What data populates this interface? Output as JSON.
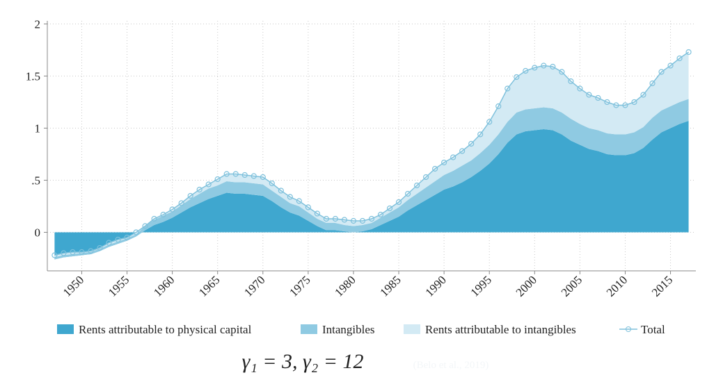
{
  "chart_data": {
    "type": "stacked_area",
    "subtitle": "γ₁ = 3,    γ₂ = 12",
    "annotation": "(Belo et al., 2019)",
    "x": [
      1947,
      1948,
      1949,
      1950,
      1951,
      1952,
      1953,
      1954,
      1955,
      1956,
      1957,
      1958,
      1959,
      1960,
      1961,
      1962,
      1963,
      1964,
      1965,
      1966,
      1967,
      1968,
      1969,
      1970,
      1971,
      1972,
      1973,
      1974,
      1975,
      1976,
      1977,
      1978,
      1979,
      1980,
      1981,
      1982,
      1983,
      1984,
      1985,
      1986,
      1987,
      1988,
      1989,
      1990,
      1991,
      1992,
      1993,
      1994,
      1995,
      1996,
      1997,
      1998,
      1999,
      2000,
      2001,
      2002,
      2003,
      2004,
      2005,
      2006,
      2007,
      2008,
      2009,
      2010,
      2011,
      2012,
      2013,
      2014,
      2015,
      2016,
      2017
    ],
    "series": [
      {
        "name": "Rents attributable to physical capital",
        "color": "#3fa7cf",
        "values": [
          -0.26,
          -0.24,
          -0.23,
          -0.22,
          -0.21,
          -0.18,
          -0.14,
          -0.11,
          -0.08,
          -0.04,
          0.02,
          0.07,
          0.1,
          0.14,
          0.19,
          0.24,
          0.28,
          0.32,
          0.35,
          0.38,
          0.37,
          0.37,
          0.36,
          0.35,
          0.3,
          0.24,
          0.19,
          0.16,
          0.11,
          0.06,
          0.02,
          0.02,
          0.01,
          0,
          0.01,
          0.03,
          0.07,
          0.11,
          0.15,
          0.21,
          0.26,
          0.31,
          0.36,
          0.41,
          0.44,
          0.48,
          0.53,
          0.59,
          0.66,
          0.75,
          0.86,
          0.94,
          0.97,
          0.98,
          0.99,
          0.98,
          0.94,
          0.88,
          0.84,
          0.8,
          0.78,
          0.75,
          0.74,
          0.74,
          0.76,
          0.81,
          0.89,
          0.96,
          1.0,
          1.04,
          1.07
        ]
      },
      {
        "name": "Intangibles",
        "color": "#8fcae2",
        "values": [
          0.02,
          0.02,
          0.02,
          0.02,
          0.02,
          0.02,
          0.02,
          0.02,
          0.02,
          0.02,
          0.04,
          0.05,
          0.06,
          0.06,
          0.07,
          0.08,
          0.09,
          0.1,
          0.1,
          0.11,
          0.11,
          0.11,
          0.11,
          0.11,
          0.1,
          0.1,
          0.09,
          0.09,
          0.08,
          0.07,
          0.07,
          0.07,
          0.06,
          0.06,
          0.06,
          0.06,
          0.07,
          0.08,
          0.09,
          0.1,
          0.11,
          0.12,
          0.13,
          0.14,
          0.15,
          0.16,
          0.16,
          0.17,
          0.18,
          0.19,
          0.2,
          0.21,
          0.21,
          0.21,
          0.21,
          0.21,
          0.21,
          0.21,
          0.2,
          0.2,
          0.2,
          0.2,
          0.2,
          0.2,
          0.2,
          0.2,
          0.21,
          0.21,
          0.21,
          0.21,
          0.21
        ]
      },
      {
        "name": "Rents attributable to intangibles",
        "color": "#d3eaf4",
        "values": [
          0.02,
          0.02,
          0.02,
          0.01,
          0.01,
          0.01,
          0.02,
          0.02,
          0.01,
          0.02,
          0,
          0.01,
          0.01,
          0.02,
          0.02,
          0.03,
          0.04,
          0.04,
          0.06,
          0.07,
          0.08,
          0.07,
          0.07,
          0.07,
          0.07,
          0.06,
          0.06,
          0.05,
          0.05,
          0.05,
          0.04,
          0.04,
          0.05,
          0.05,
          0.04,
          0.04,
          0.03,
          0.04,
          0.05,
          0.06,
          0.08,
          0.1,
          0.12,
          0.12,
          0.13,
          0.14,
          0.16,
          0.18,
          0.22,
          0.27,
          0.32,
          0.34,
          0.37,
          0.39,
          0.4,
          0.4,
          0.39,
          0.36,
          0.34,
          0.32,
          0.31,
          0.3,
          0.28,
          0.28,
          0.29,
          0.31,
          0.33,
          0.37,
          0.39,
          0.42,
          0.45
        ]
      },
      {
        "name": "Total",
        "color": "#7fc1dc",
        "line": true,
        "values": [
          -0.22,
          -0.2,
          -0.19,
          -0.19,
          -0.18,
          -0.15,
          -0.1,
          -0.07,
          -0.05,
          0,
          0.06,
          0.13,
          0.17,
          0.22,
          0.28,
          0.35,
          0.41,
          0.46,
          0.51,
          0.56,
          0.56,
          0.55,
          0.54,
          0.53,
          0.47,
          0.4,
          0.34,
          0.3,
          0.24,
          0.18,
          0.13,
          0.13,
          0.12,
          0.11,
          0.11,
          0.13,
          0.17,
          0.23,
          0.29,
          0.37,
          0.45,
          0.53,
          0.61,
          0.67,
          0.72,
          0.78,
          0.85,
          0.94,
          1.06,
          1.21,
          1.38,
          1.49,
          1.55,
          1.58,
          1.6,
          1.59,
          1.54,
          1.45,
          1.38,
          1.32,
          1.29,
          1.25,
          1.22,
          1.22,
          1.25,
          1.32,
          1.43,
          1.54,
          1.6,
          1.67,
          1.73
        ]
      }
    ],
    "xlim": [
      1946.2,
      2017.8
    ],
    "xticks": [
      1950,
      1955,
      1960,
      1965,
      1970,
      1975,
      1980,
      1985,
      1990,
      1995,
      2000,
      2005,
      2010,
      2015
    ],
    "ylim": [
      -0.37,
      2.03
    ],
    "yticks": [
      0,
      {
        "value": 0.5,
        "label": ".5"
      },
      1,
      1.5,
      2
    ],
    "grid": true,
    "legend": "bottom"
  }
}
